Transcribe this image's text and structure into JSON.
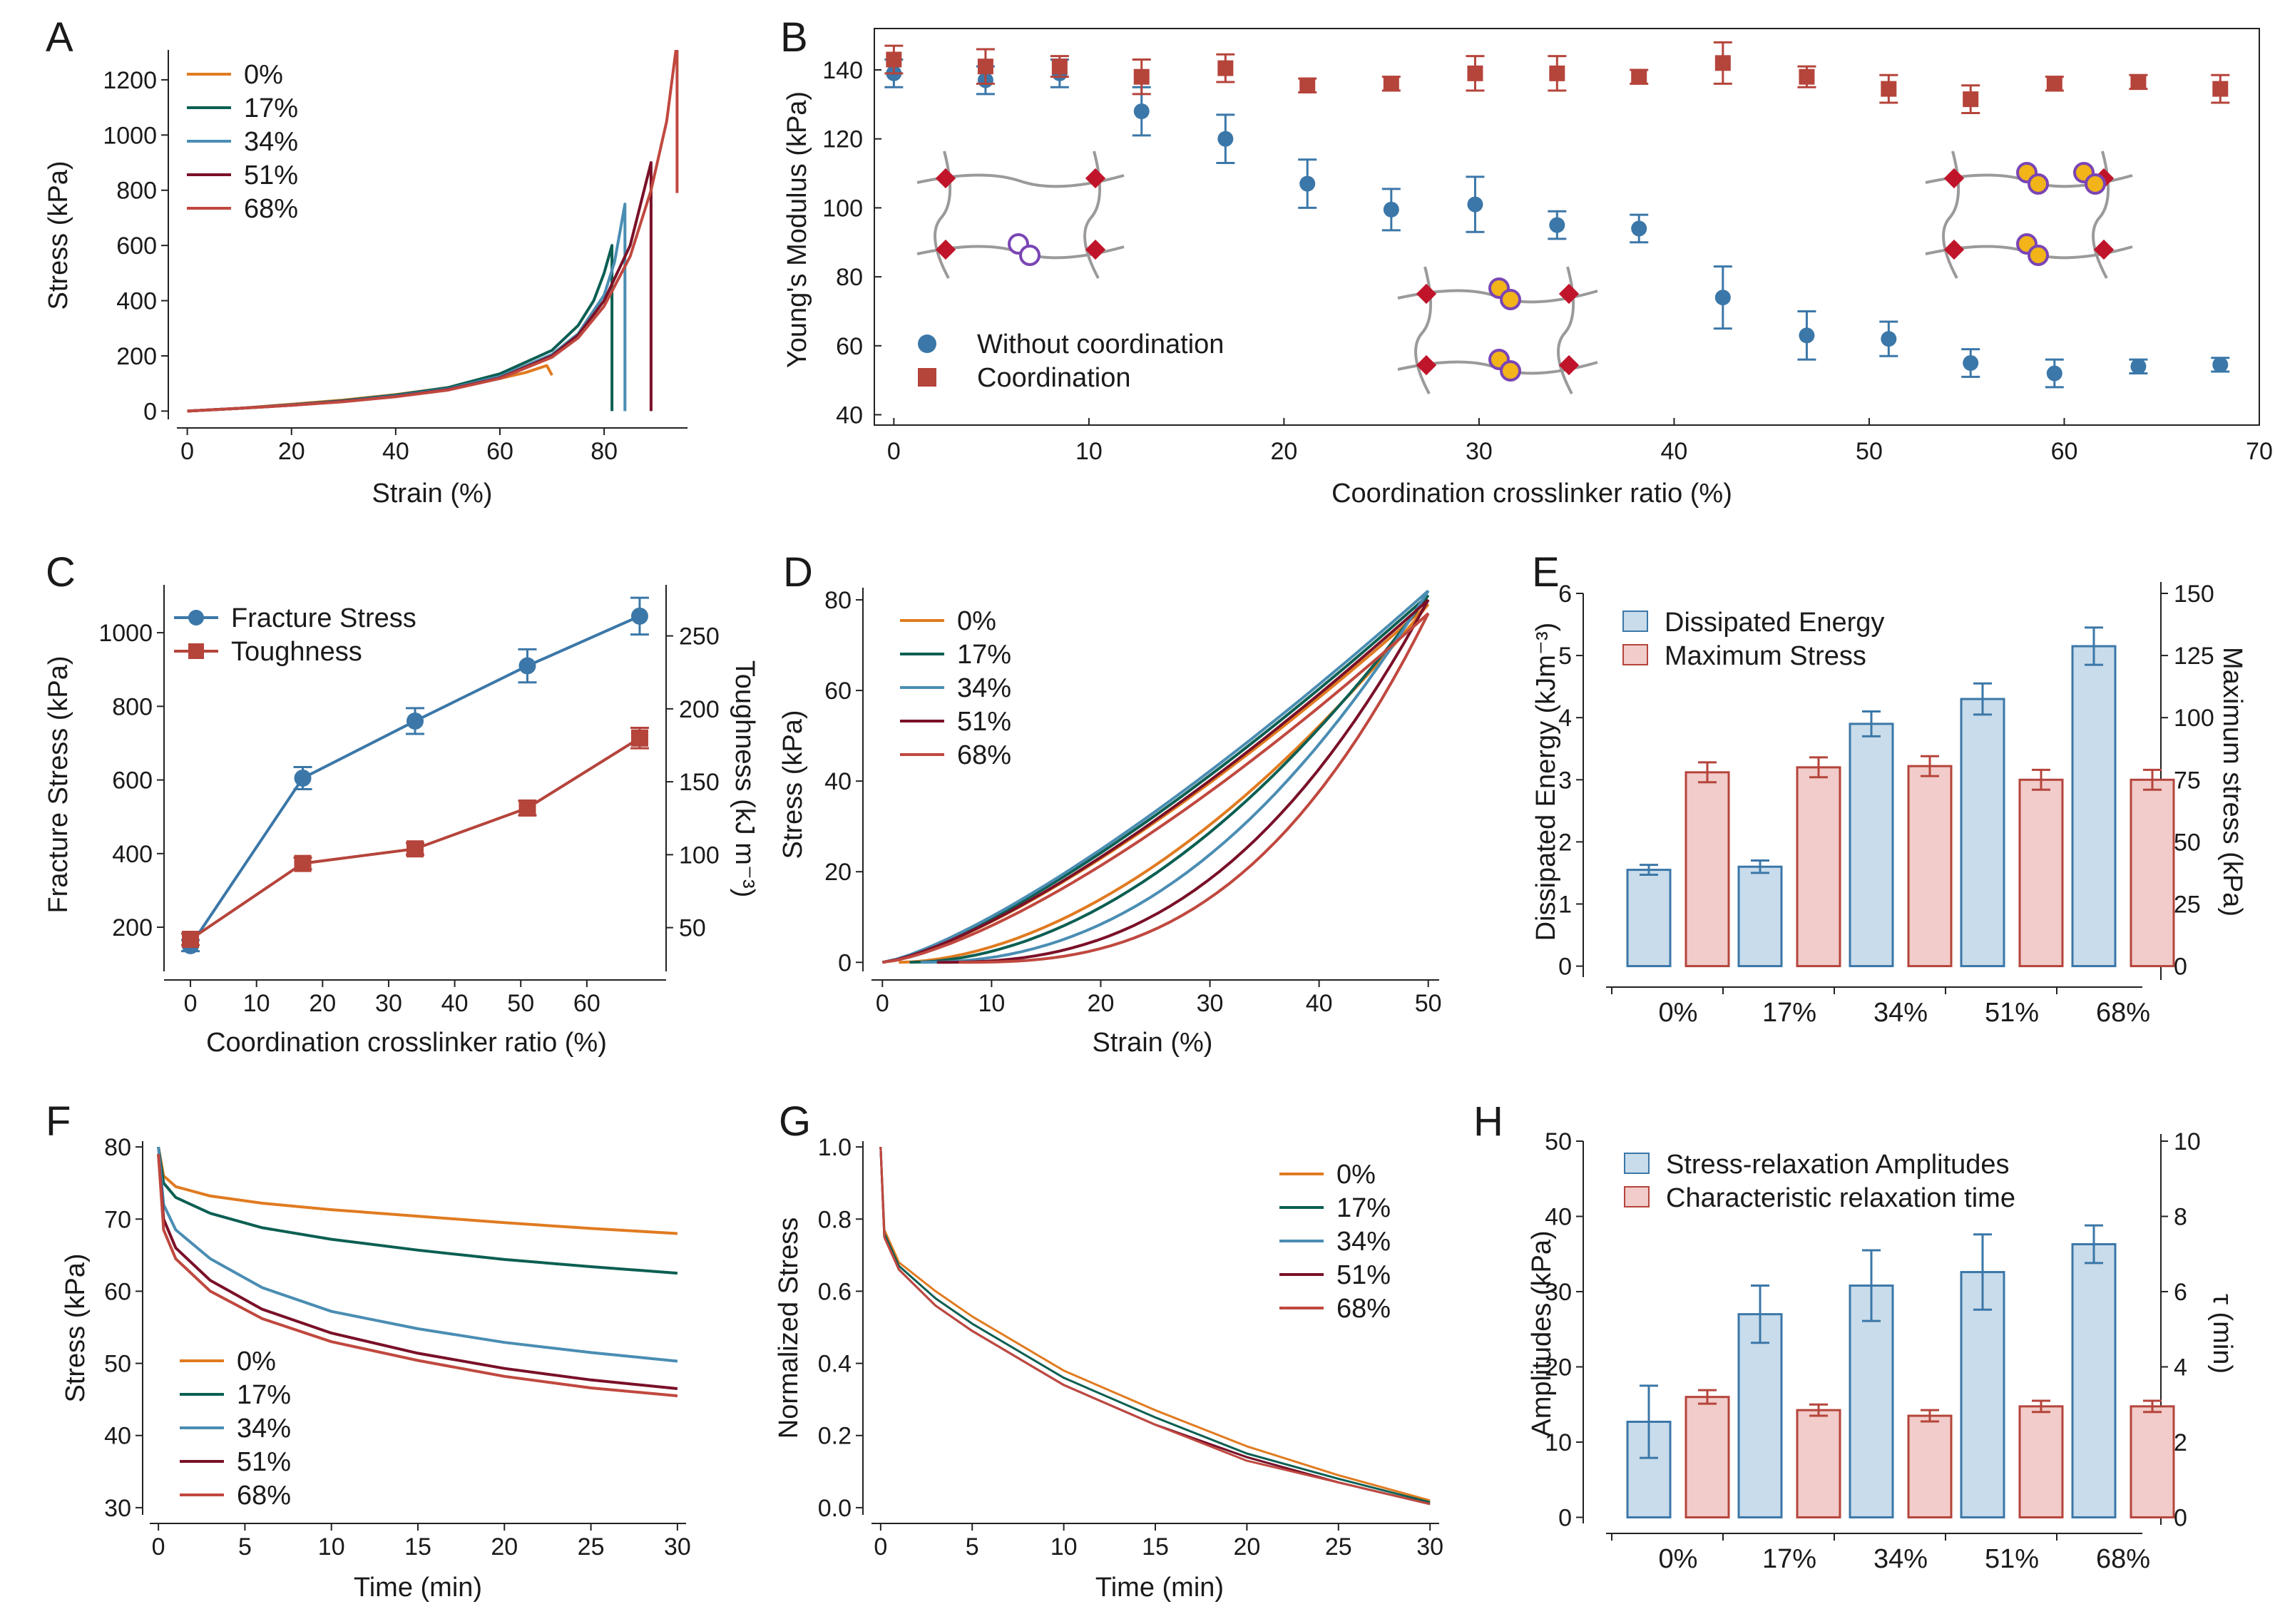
{
  "colors": {
    "c0": "#E07B20",
    "c17": "#0B5F52",
    "c34": "#4A8DB3",
    "c51": "#7A1028",
    "c68": "#C0483F",
    "blue": "#3B77A8",
    "red": "#B5443B",
    "barBlueFill": "#C9DCEB",
    "barRedFill": "#F1CCCA"
  },
  "panels": {
    "A": "A",
    "B": "B",
    "C": "C",
    "D": "D",
    "E": "E",
    "F": "F",
    "G": "G",
    "H": "H"
  },
  "chart_data": [
    {
      "panel": "A",
      "type": "line",
      "xlabel": "Strain (%)",
      "ylabel": "Stress (kPa)",
      "xlim": [
        -2,
        96
      ],
      "ylim": [
        -30,
        1360
      ],
      "xticks": [
        0,
        20,
        40,
        60,
        80
      ],
      "yticks": [
        0,
        200,
        400,
        600,
        800,
        1000,
        1200
      ],
      "legend": [
        "0%",
        "17%",
        "34%",
        "51%",
        "68%"
      ],
      "series": [
        {
          "name": "0%",
          "color": "c0",
          "x": [
            0,
            10,
            20,
            30,
            40,
            50,
            60,
            65,
            69,
            70
          ],
          "y": [
            0,
            10,
            25,
            40,
            60,
            85,
            118,
            140,
            165,
            130
          ]
        },
        {
          "name": "17%",
          "color": "c17",
          "x": [
            0,
            10,
            20,
            30,
            40,
            50,
            60,
            70,
            75,
            78,
            80,
            81.5,
            81.5
          ],
          "y": [
            0,
            10,
            23,
            38,
            58,
            85,
            135,
            220,
            310,
            400,
            500,
            600,
            0
          ]
        },
        {
          "name": "34%",
          "color": "c34",
          "x": [
            0,
            10,
            20,
            30,
            40,
            50,
            60,
            70,
            75,
            80,
            82,
            84,
            84
          ],
          "y": [
            0,
            10,
            22,
            36,
            55,
            80,
            125,
            205,
            280,
            420,
            540,
            750,
            0
          ]
        },
        {
          "name": "51%",
          "color": "c51",
          "x": [
            0,
            10,
            20,
            30,
            40,
            50,
            60,
            70,
            75,
            80,
            85,
            89,
            89
          ],
          "y": [
            0,
            10,
            21,
            35,
            53,
            78,
            120,
            200,
            275,
            400,
            600,
            900,
            0
          ]
        },
        {
          "name": "68%",
          "color": "c68",
          "x": [
            0,
            10,
            20,
            30,
            40,
            50,
            60,
            70,
            75,
            80,
            85,
            89,
            92,
            94,
            94
          ],
          "y": [
            0,
            10,
            21,
            34,
            52,
            76,
            118,
            195,
            265,
            380,
            560,
            800,
            1050,
            1340,
            790
          ]
        }
      ]
    },
    {
      "panel": "B",
      "type": "scatter",
      "xlabel": "Coordination crosslinker ratio (%)",
      "ylabel": "Young's Modulus (kPa)",
      "xlim": [
        -1,
        70
      ],
      "ylim": [
        37,
        152
      ],
      "xticks": [
        0,
        10,
        20,
        30,
        40,
        50,
        60,
        70
      ],
      "yticks": [
        40,
        60,
        80,
        100,
        120,
        140
      ],
      "legend": [
        "Without coordination",
        "Coordination"
      ],
      "series": [
        {
          "name": "Without coordination",
          "color": "blue",
          "marker": "circle",
          "x": [
            0,
            4.7,
            8.5,
            12.7,
            17,
            21.2,
            25.5,
            29.8,
            34,
            38.2,
            42.5,
            46.8,
            51,
            55.2,
            59.5,
            63.8,
            68
          ],
          "y": [
            139,
            137,
            139,
            128,
            120,
            107,
            99.5,
            101,
            95,
            94,
            74,
            63,
            62,
            55,
            52,
            54,
            54.5
          ],
          "err": [
            4,
            4,
            4,
            7,
            7,
            7,
            6,
            8,
            4,
            4,
            9,
            7,
            5,
            4,
            4,
            2,
            2
          ]
        },
        {
          "name": "Coordination",
          "color": "red",
          "marker": "square",
          "x": [
            0,
            4.7,
            8.5,
            12.7,
            17,
            21.2,
            25.5,
            29.8,
            34,
            38.2,
            42.5,
            46.8,
            51,
            55.2,
            59.5,
            63.8,
            68
          ],
          "y": [
            143,
            141,
            141,
            138,
            140.5,
            135.5,
            136,
            139,
            139,
            138,
            142,
            138,
            134.5,
            131.5,
            136,
            136.5,
            134.5
          ],
          "err": [
            4,
            5,
            3,
            5,
            4,
            2,
            2,
            5,
            5,
            2,
            6,
            3,
            4,
            4,
            2,
            2,
            4
          ]
        }
      ]
    },
    {
      "panel": "C",
      "type": "line",
      "xlabel": "Coordination crosslinker ratio (%)",
      "ylabel": "Fracture Stress (kPa)",
      "ylabel_right": "Toughness (kJ m⁻³)",
      "xlim": [
        -4,
        72
      ],
      "ylim": [
        80,
        1130
      ],
      "ylim_right": [
        20,
        285
      ],
      "xticks": [
        0,
        10,
        20,
        30,
        40,
        50,
        60
      ],
      "yticks": [
        200,
        400,
        600,
        800,
        1000
      ],
      "yticks_right": [
        50,
        100,
        150,
        200,
        250
      ],
      "legend": [
        "Fracture Stress",
        "Toughness"
      ],
      "series": [
        {
          "name": "Fracture Stress",
          "color": "blue",
          "axis": "left",
          "x": [
            0,
            17,
            34,
            51,
            68
          ],
          "y": [
            150,
            605,
            760,
            910,
            1045
          ],
          "err": [
            15,
            30,
            35,
            45,
            50
          ]
        },
        {
          "name": "Toughness",
          "color": "red",
          "axis": "right",
          "x": [
            0,
            17,
            34,
            51,
            68
          ],
          "y": [
            42,
            94,
            104,
            132,
            180
          ],
          "err": [
            4,
            4,
            4,
            5,
            7
          ]
        }
      ]
    },
    {
      "panel": "D",
      "type": "line",
      "xlabel": "Strain (%)",
      "ylabel": "Stress (kPa)",
      "xlim": [
        -1,
        51
      ],
      "ylim": [
        -2,
        83
      ],
      "xticks": [
        0,
        10,
        20,
        30,
        40,
        50
      ],
      "yticks": [
        0,
        20,
        40,
        60,
        80
      ],
      "legend": [
        "0%",
        "17%",
        "34%",
        "51%",
        "68%"
      ],
      "series": [
        {
          "name": "0%",
          "color": "c0",
          "peak": 79,
          "residual": 1.5,
          "load_exp": 1.35,
          "unload_exp": 1.8
        },
        {
          "name": "17%",
          "color": "c17",
          "peak": 81,
          "residual": 2.5,
          "load_exp": 1.32,
          "unload_exp": 1.9
        },
        {
          "name": "34%",
          "color": "c34",
          "peak": 82,
          "residual": 3.5,
          "load_exp": 1.3,
          "unload_exp": 2.2
        },
        {
          "name": "51%",
          "color": "c51",
          "peak": 80,
          "residual": 5,
          "load_exp": 1.35,
          "unload_exp": 2.5
        },
        {
          "name": "68%",
          "color": "c68",
          "peak": 77,
          "residual": 7,
          "load_exp": 1.4,
          "unload_exp": 2.7
        }
      ]
    },
    {
      "panel": "E",
      "type": "bar",
      "categories": [
        "0%",
        "17%",
        "34%",
        "51%",
        "68%"
      ],
      "ylabel": "Dissipated Energy (kJm⁻³)",
      "ylabel_right": "Maximum stress (kPa)",
      "ylim": [
        -0.2,
        6
      ],
      "ylim_right": [
        -5,
        150
      ],
      "yticks": [
        0,
        1,
        2,
        3,
        4,
        5,
        6
      ],
      "yticks_right": [
        0,
        25,
        50,
        75,
        100,
        125,
        150
      ],
      "legend": [
        "Dissipated Energy",
        "Maximum Stress"
      ],
      "series": [
        {
          "name": "Dissipated Energy",
          "axis": "left",
          "values": [
            1.55,
            1.6,
            3.9,
            4.3,
            5.15
          ],
          "err": [
            0.08,
            0.1,
            0.2,
            0.25,
            0.3
          ]
        },
        {
          "name": "Maximum Stress",
          "axis": "right",
          "values": [
            78,
            80,
            80.5,
            75,
            75
          ],
          "err": [
            4,
            4,
            4,
            4,
            4
          ]
        }
      ]
    },
    {
      "panel": "F",
      "type": "line",
      "xlabel": "Time (min)",
      "ylabel": "Stress (kPa)",
      "xlim": [
        -0.5,
        30.5
      ],
      "ylim": [
        29,
        81
      ],
      "xticks": [
        0,
        5,
        10,
        15,
        20,
        25,
        30
      ],
      "yticks": [
        30,
        40,
        50,
        60,
        70,
        80
      ],
      "legend": [
        "0%",
        "17%",
        "34%",
        "51%",
        "68%"
      ],
      "series": [
        {
          "name": "0%",
          "color": "c0",
          "x": [
            0,
            0.3,
            1,
            3,
            6,
            10,
            15,
            20,
            25,
            30
          ],
          "y": [
            80,
            76,
            74.5,
            73.2,
            72.2,
            71.3,
            70.4,
            69.5,
            68.7,
            68
          ]
        },
        {
          "name": "17%",
          "color": "c17",
          "x": [
            0,
            0.3,
            1,
            3,
            6,
            10,
            15,
            20,
            25,
            30
          ],
          "y": [
            80,
            75,
            73,
            70.8,
            68.8,
            67.2,
            65.7,
            64.4,
            63.4,
            62.5
          ]
        },
        {
          "name": "34%",
          "color": "c34",
          "x": [
            0,
            0.3,
            1,
            3,
            6,
            10,
            15,
            20,
            25,
            30
          ],
          "y": [
            80,
            72,
            68.5,
            64.5,
            60.5,
            57.2,
            54.8,
            52.9,
            51.5,
            50.3
          ]
        },
        {
          "name": "51%",
          "color": "c51",
          "x": [
            0,
            0.3,
            1,
            3,
            6,
            10,
            15,
            20,
            25,
            30
          ],
          "y": [
            79,
            70,
            66,
            61.5,
            57.5,
            54.2,
            51.4,
            49.3,
            47.7,
            46.5
          ]
        },
        {
          "name": "68%",
          "color": "c68",
          "x": [
            0,
            0.3,
            1,
            3,
            6,
            10,
            15,
            20,
            25,
            30
          ],
          "y": [
            79,
            68.5,
            64.5,
            60,
            56.2,
            53,
            50.4,
            48.2,
            46.6,
            45.5
          ]
        }
      ]
    },
    {
      "panel": "G",
      "type": "line",
      "xlabel": "Time (min)",
      "ylabel": "Normalized Stress",
      "xlim": [
        -0.5,
        30.5
      ],
      "ylim": [
        -0.02,
        1.02
      ],
      "xticks": [
        0,
        5,
        10,
        15,
        20,
        25,
        30
      ],
      "yticks": [
        0,
        0.2,
        0.4,
        0.6,
        0.8,
        1.0
      ],
      "ytick_labels": [
        "0.0",
        "0.2",
        "0.4",
        "0.6",
        "0.8",
        "1.0"
      ],
      "legend": [
        "0%",
        "17%",
        "34%",
        "51%",
        "68%"
      ],
      "series": [
        {
          "name": "0%",
          "color": "c0",
          "x": [
            0,
            0.2,
            1,
            3,
            5,
            10,
            15,
            20,
            25,
            30
          ],
          "y": [
            1,
            0.77,
            0.68,
            0.6,
            0.53,
            0.38,
            0.27,
            0.17,
            0.09,
            0.02
          ]
        },
        {
          "name": "17%",
          "color": "c17",
          "x": [
            0,
            0.2,
            1,
            3,
            5,
            10,
            15,
            20,
            25,
            30
          ],
          "y": [
            1,
            0.76,
            0.67,
            0.58,
            0.51,
            0.36,
            0.25,
            0.15,
            0.08,
            0.015
          ]
        },
        {
          "name": "34%",
          "color": "c34",
          "x": [
            0,
            0.2,
            1,
            3,
            5,
            10,
            15,
            20,
            25,
            30
          ],
          "y": [
            1,
            0.75,
            0.66,
            0.56,
            0.49,
            0.34,
            0.23,
            0.14,
            0.07,
            0.01
          ]
        },
        {
          "name": "51%",
          "color": "c51",
          "x": [
            0,
            0.2,
            1,
            3,
            5,
            10,
            15,
            20,
            25,
            30
          ],
          "y": [
            1,
            0.75,
            0.66,
            0.56,
            0.49,
            0.34,
            0.23,
            0.14,
            0.07,
            0.01
          ]
        },
        {
          "name": "68%",
          "color": "c68",
          "x": [
            0,
            0.2,
            1,
            3,
            5,
            10,
            15,
            20,
            25,
            30
          ],
          "y": [
            1,
            0.75,
            0.66,
            0.56,
            0.49,
            0.34,
            0.23,
            0.13,
            0.07,
            0.01
          ]
        }
      ]
    },
    {
      "panel": "H",
      "type": "bar",
      "categories": [
        "0%",
        "17%",
        "34%",
        "51%",
        "68%"
      ],
      "ylabel": "Amplitudes (kPa)",
      "ylabel_right": "τ (min)",
      "ylim": [
        -1,
        50
      ],
      "ylim_right": [
        -0.2,
        10
      ],
      "yticks": [
        0,
        10,
        20,
        30,
        40,
        50
      ],
      "yticks_right": [
        0,
        2,
        4,
        6,
        8,
        10
      ],
      "legend": [
        "Stress-relaxation Amplitudes",
        "Characteristic relaxation time"
      ],
      "series": [
        {
          "name": "Stress-relaxation Amplitudes",
          "axis": "left",
          "values": [
            12.7,
            27,
            30.8,
            32.6,
            36.3
          ],
          "err": [
            4.8,
            3.8,
            4.7,
            5.0,
            2.5
          ]
        },
        {
          "name": "Characteristic relaxation time",
          "axis": "right",
          "values": [
            3.2,
            2.85,
            2.7,
            2.95,
            2.95
          ],
          "err": [
            0.18,
            0.15,
            0.15,
            0.15,
            0.15
          ]
        }
      ]
    }
  ]
}
